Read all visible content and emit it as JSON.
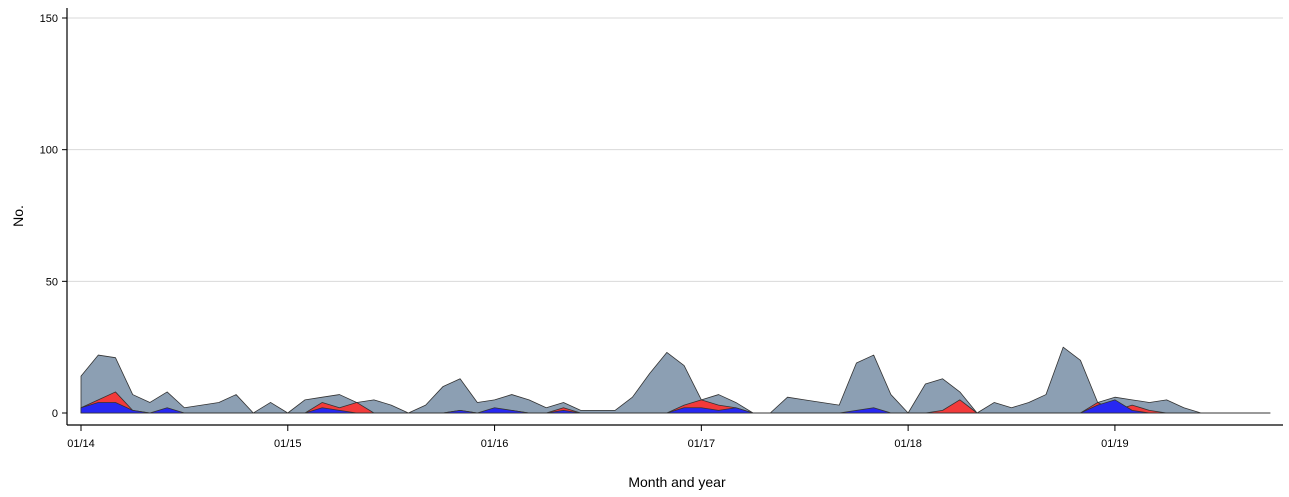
{
  "chart_data": {
    "type": "area",
    "title": "",
    "xlabel": "Month and year",
    "ylabel": "No.",
    "ylim": [
      0,
      150
    ],
    "yticks": [
      0,
      50,
      100,
      150
    ],
    "xlim": [
      0,
      69
    ],
    "xticks": [
      {
        "x": 0,
        "label": "01/14"
      },
      {
        "x": 12,
        "label": "01/15"
      },
      {
        "x": 24,
        "label": "01/16"
      },
      {
        "x": 36,
        "label": "01/17"
      },
      {
        "x": 48,
        "label": "01/18"
      },
      {
        "x": 60,
        "label": "01/19"
      }
    ],
    "grid": true,
    "stacked": false,
    "x": [
      0,
      1,
      2,
      3,
      4,
      5,
      6,
      7,
      8,
      9,
      10,
      11,
      12,
      13,
      14,
      15,
      16,
      17,
      18,
      19,
      20,
      21,
      22,
      23,
      24,
      25,
      26,
      27,
      28,
      29,
      30,
      31,
      32,
      33,
      34,
      35,
      36,
      37,
      38,
      39,
      40,
      41,
      42,
      43,
      44,
      45,
      46,
      47,
      48,
      49,
      50,
      51,
      52,
      53,
      54,
      55,
      56,
      57,
      58,
      59,
      60,
      61,
      62,
      63,
      64,
      65,
      66,
      67,
      68,
      69
    ],
    "series": [
      {
        "color": "#8c9fb3",
        "values": [
          14,
          22,
          21,
          7,
          4,
          8,
          2,
          3,
          4,
          7,
          0,
          4,
          0,
          5,
          6,
          7,
          4,
          5,
          3,
          0,
          3,
          10,
          13,
          4,
          5,
          7,
          5,
          2,
          4,
          1,
          1,
          1,
          6,
          15,
          23,
          18,
          5,
          7,
          4,
          0,
          0,
          6,
          5,
          4,
          3,
          19,
          22,
          7,
          0,
          11,
          13,
          8,
          0,
          4,
          2,
          4,
          7,
          25,
          20,
          4,
          6,
          5,
          4,
          5,
          2,
          0,
          0,
          0,
          0,
          0
        ]
      },
      {
        "color": "#f23a3a",
        "values": [
          2,
          5,
          8,
          1,
          0,
          1,
          0,
          0,
          0,
          0,
          0,
          0,
          0,
          0,
          4,
          2,
          4,
          0,
          0,
          0,
          0,
          0,
          1,
          0,
          0,
          1,
          0,
          0,
          2,
          0,
          0,
          0,
          0,
          0,
          0,
          3,
          5,
          3,
          2,
          0,
          0,
          0,
          0,
          0,
          0,
          0,
          1,
          0,
          0,
          0,
          1,
          5,
          0,
          0,
          0,
          0,
          0,
          0,
          0,
          4,
          1,
          3,
          1,
          0,
          0,
          0,
          0,
          0,
          0,
          0
        ]
      },
      {
        "color": "#2727f2",
        "values": [
          2,
          4,
          4,
          1,
          0,
          2,
          0,
          0,
          0,
          0,
          0,
          0,
          0,
          0,
          2,
          1,
          0,
          0,
          0,
          0,
          0,
          0,
          1,
          0,
          2,
          1,
          0,
          0,
          1,
          0,
          0,
          0,
          0,
          0,
          0,
          2,
          2,
          1,
          2,
          0,
          0,
          0,
          0,
          0,
          0,
          1,
          2,
          0,
          0,
          0,
          0,
          0,
          0,
          0,
          0,
          0,
          0,
          0,
          0,
          3,
          5,
          1,
          0,
          0,
          0,
          0,
          0,
          0,
          0,
          0
        ]
      }
    ]
  }
}
